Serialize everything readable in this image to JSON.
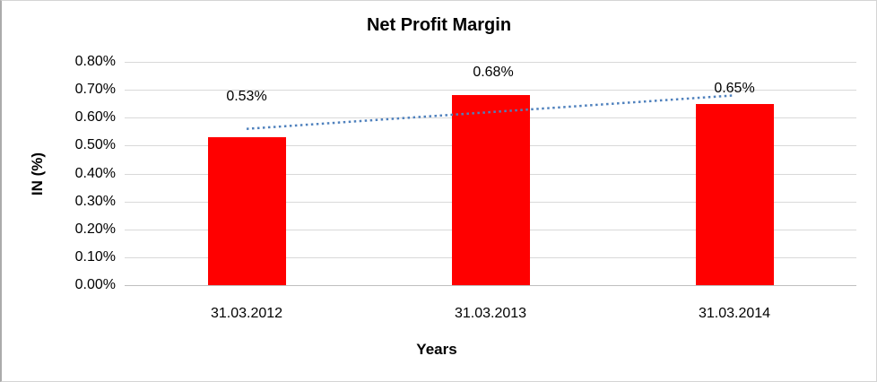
{
  "chart_data": {
    "type": "bar",
    "title": "Net Profit Margin",
    "xlabel": "Years",
    "ylabel": "IN (%)",
    "categories": [
      "31.03.2012",
      "31.03.2013",
      "31.03.2014"
    ],
    "values": [
      0.53,
      0.68,
      0.65
    ],
    "value_labels": [
      "0.53%",
      "0.68%",
      "0.65%"
    ],
    "ytick_labels": [
      "0.00%",
      "0.10%",
      "0.20%",
      "0.30%",
      "0.40%",
      "0.50%",
      "0.60%",
      "0.70%",
      "0.80%"
    ],
    "ylim": [
      0,
      0.8
    ],
    "ytick_step": 0.1,
    "grid": "horizontal-gridlines-on",
    "legend": "none",
    "bar_color": "#ff0000",
    "gridline_color": "#d9d9d9",
    "axis_line_color": "#bfbfbf",
    "trendline": {
      "type": "linear",
      "style": "dotted",
      "color": "#4f81bd",
      "start_value": 0.56,
      "end_value": 0.68
    }
  }
}
